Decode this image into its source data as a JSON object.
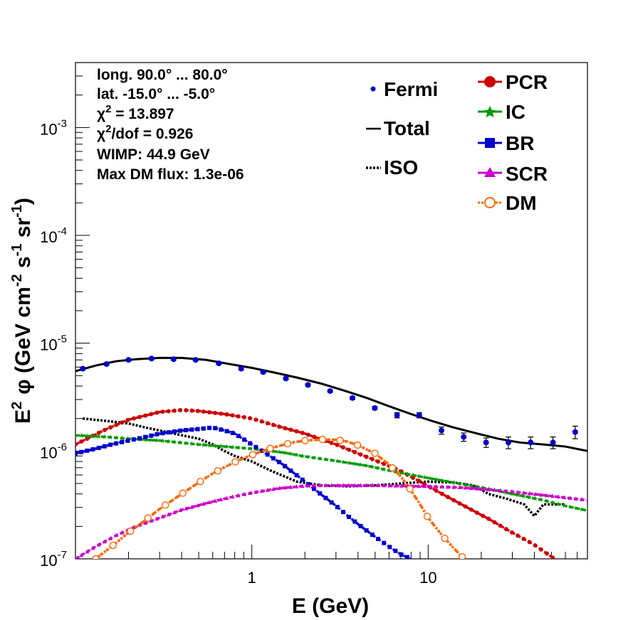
{
  "chart_data": {
    "type": "line",
    "x_scale": "log",
    "y_scale": "log",
    "xlabel": "E (GeV)",
    "ylabel_parts": {
      "a": "E",
      "a_sup": "2",
      "b": "φ (GeV cm",
      "b_sup": "-2",
      "c": " s",
      "c_sup": "-1",
      "d": " sr",
      "d_sup": "-1",
      "e": ")"
    },
    "xlim": [
      0.1,
      80
    ],
    "ylim": [
      1e-07,
      0.004
    ],
    "x_tick_labels": [
      {
        "value": 1,
        "text": "1"
      },
      {
        "value": 10,
        "text": "10"
      }
    ],
    "y_tick_labels": [
      {
        "value": 1e-07,
        "base": "10",
        "exp": "-7"
      },
      {
        "value": 1e-06,
        "base": "10",
        "exp": "-6"
      },
      {
        "value": 1e-05,
        "base": "10",
        "exp": "-5"
      },
      {
        "value": 0.0001,
        "base": "10",
        "exp": "-4"
      },
      {
        "value": 0.001,
        "base": "10",
        "exp": "-3"
      }
    ],
    "info_lines": [
      {
        "text": "long. 90.0° ... 80.0°"
      },
      {
        "text": "lat. -15.0° ... -5.0°"
      },
      {
        "prefix": "χ",
        "sup": "2",
        "text": " = 13.897"
      },
      {
        "prefix": "χ",
        "sup": "2",
        "text": "/dof = 0.926"
      },
      {
        "text": "WIMP: 44.9 GeV"
      },
      {
        "text": "Max DM flux: 1.3e-06"
      }
    ],
    "legend_left": [
      {
        "label": "Fermi",
        "style": "point",
        "color": "#0000cc"
      },
      {
        "label": "Total",
        "style": "line",
        "color": "#000000"
      },
      {
        "label": "ISO",
        "style": "dotted",
        "color": "#000000"
      }
    ],
    "legend_right": [
      {
        "label": "PCR",
        "marker": "circle",
        "color": "#cc0000"
      },
      {
        "label": "IC",
        "marker": "star",
        "color": "#009900"
      },
      {
        "label": "BR",
        "marker": "square",
        "color": "#0000cc"
      },
      {
        "label": "SCR",
        "marker": "triangle",
        "color": "#cc00cc"
      },
      {
        "label": "DM",
        "marker": "open-circle",
        "color": "#ff6600"
      }
    ],
    "fermi": {
      "x": [
        0.11,
        0.15,
        0.2,
        0.27,
        0.36,
        0.48,
        0.65,
        0.87,
        1.16,
        1.56,
        2.08,
        2.78,
        3.72,
        4.98,
        6.66,
        8.9,
        11.9,
        15.9,
        21.3,
        28.5,
        38.1,
        51.0,
        68.2
      ],
      "y": [
        5.8e-06,
        6.4e-06,
        7e-06,
        7.2e-06,
        7.1e-06,
        7e-06,
        6.5e-06,
        5.8e-06,
        5.4e-06,
        4.7e-06,
        4.1e-06,
        3.6e-06,
        3.1e-06,
        2.5e-06,
        2.15e-06,
        2.15e-06,
        1.55e-06,
        1.35e-06,
        1.2e-06,
        1.2e-06,
        1.2e-06,
        1.2e-06,
        1.5e-06
      ],
      "err": [
        1.5e-07,
        1.5e-07,
        1.5e-07,
        1.5e-07,
        1.5e-07,
        1.5e-07,
        1.5e-07,
        1.5e-07,
        1.2e-07,
        1e-07,
        1e-07,
        8e-08,
        8e-08,
        8e-08,
        1.2e-07,
        1.2e-07,
        1.2e-07,
        1.2e-07,
        1.2e-07,
        1.5e-07,
        1.5e-07,
        1.5e-07,
        2e-07
      ],
      "color": "#0000cc"
    },
    "series": [
      {
        "name": "Total",
        "style": "solid",
        "color": "#000000",
        "marker": "none",
        "x": [
          0.1,
          0.13,
          0.17,
          0.22,
          0.3,
          0.4,
          0.55,
          0.75,
          1.0,
          1.3,
          1.8,
          2.5,
          3.4,
          4.5,
          6.0,
          8.0,
          10.5,
          14.0,
          19.0,
          25.0,
          33.0,
          45.0,
          60.0,
          80.0
        ],
        "y": [
          5.5e-06,
          6.2e-06,
          6.8e-06,
          7.1e-06,
          7.3e-06,
          7.3e-06,
          7e-06,
          6.4e-06,
          5.9e-06,
          5.4e-06,
          4.8e-06,
          4.2e-06,
          3.6e-06,
          3.1e-06,
          2.6e-06,
          2.2e-06,
          1.9e-06,
          1.65e-06,
          1.45e-06,
          1.3e-06,
          1.2e-06,
          1.15e-06,
          1.1e-06,
          1e-06
        ]
      },
      {
        "name": "ISO",
        "style": "dotted",
        "color": "#000000",
        "marker": "none",
        "x": [
          0.11,
          0.15,
          0.2,
          0.25,
          0.3,
          0.4,
          0.5,
          0.6,
          0.7,
          0.8,
          1.0,
          1.3,
          1.8,
          2.5,
          3.5,
          5.0,
          7.0,
          10.0,
          14.0,
          18.0,
          22.0,
          28.0,
          35.0,
          40.0,
          45.0,
          50.0,
          60.0
        ],
        "y": [
          2e-06,
          1.9e-06,
          1.8e-06,
          1.65e-06,
          1.55e-06,
          1.4e-06,
          1.3e-06,
          1.15e-06,
          1e-06,
          9e-07,
          8e-07,
          6.5e-07,
          5.2e-07,
          4.8e-07,
          4.7e-07,
          4.8e-07,
          5e-07,
          5.2e-07,
          5.1e-07,
          4.8e-07,
          4e-07,
          3.6e-07,
          3.2e-07,
          2.5e-07,
          3.2e-07,
          3.2e-07,
          3.2e-07
        ]
      },
      {
        "name": "PCR",
        "style": "dashed",
        "color": "#cc0000",
        "marker": "circle",
        "x": [
          0.1,
          0.15,
          0.2,
          0.3,
          0.4,
          0.5,
          0.7,
          1.0,
          1.4,
          2.0,
          3.0,
          4.0,
          5.5,
          7.0,
          9.0,
          12.0,
          16.0,
          22.0,
          30.0,
          40.0,
          52.0
        ],
        "y": [
          1.15e-06,
          1.6e-06,
          1.95e-06,
          2.3e-06,
          2.4e-06,
          2.35e-06,
          2.2e-06,
          2e-06,
          1.7e-06,
          1.45e-06,
          1.15e-06,
          9.5e-07,
          7.7e-07,
          6.5e-07,
          5.2e-07,
          4e-07,
          3.1e-07,
          2.35e-07,
          1.75e-07,
          1.35e-07,
          1e-07
        ]
      },
      {
        "name": "IC",
        "style": "dashed",
        "color": "#009900",
        "marker": "star",
        "x": [
          0.1,
          0.15,
          0.2,
          0.3,
          0.5,
          0.7,
          1.0,
          1.5,
          2.0,
          3.0,
          4.5,
          6.0,
          9.0,
          13.0,
          20.0,
          30.0,
          45.0,
          60.0,
          80.0
        ],
        "y": [
          1.4e-06,
          1.35e-06,
          1.3e-06,
          1.25e-06,
          1.15e-06,
          1.1e-06,
          1.05e-06,
          9.7e-07,
          8.9e-07,
          8.1e-07,
          7.3e-07,
          6.6e-07,
          5.8e-07,
          5.2e-07,
          4.6e-07,
          4e-07,
          3.5e-07,
          3.1e-07,
          2.8e-07
        ]
      },
      {
        "name": "BR",
        "style": "dashed",
        "color": "#0000cc",
        "marker": "square",
        "x": [
          0.1,
          0.13,
          0.16,
          0.2,
          0.25,
          0.3,
          0.4,
          0.5,
          0.6,
          0.7,
          0.8,
          1.0,
          1.2,
          1.5,
          2.0,
          2.5,
          3.0,
          3.5,
          4.0,
          5.0,
          6.0,
          7.0,
          8.0
        ],
        "y": [
          9.5e-07,
          1.05e-06,
          1.15e-06,
          1.25e-06,
          1.35e-06,
          1.45e-06,
          1.55e-06,
          1.6e-06,
          1.65e-06,
          1.55e-06,
          1.45e-06,
          1.15e-06,
          9.5e-07,
          7.5e-07,
          5.2e-07,
          3.9e-07,
          3.1e-07,
          2.5e-07,
          2.1e-07,
          1.6e-07,
          1.3e-07,
          1.1e-07,
          1e-07
        ]
      },
      {
        "name": "SCR",
        "style": "dashed",
        "color": "#cc00cc",
        "marker": "triangle",
        "x": [
          0.1,
          0.13,
          0.17,
          0.22,
          0.3,
          0.4,
          0.6,
          0.8,
          1.0,
          1.4,
          2.0,
          2.5,
          3.5,
          5.0,
          7.0,
          10.0,
          15.0,
          20.0,
          30.0,
          45.0,
          60.0,
          80.0
        ],
        "y": [
          1e-07,
          1.3e-07,
          1.65e-07,
          2e-07,
          2.4e-07,
          2.85e-07,
          3.4e-07,
          3.8e-07,
          4.1e-07,
          4.5e-07,
          4.75e-07,
          4.8e-07,
          4.8e-07,
          4.8e-07,
          4.75e-07,
          4.7e-07,
          4.6e-07,
          4.45e-07,
          4.2e-07,
          3.9e-07,
          3.7e-07,
          3.5e-07
        ]
      },
      {
        "name": "DM",
        "style": "dotted",
        "color": "#ff6600",
        "marker": "open-circle",
        "x": [
          0.13,
          0.16,
          0.2,
          0.25,
          0.3,
          0.4,
          0.5,
          0.6,
          0.8,
          1.0,
          1.3,
          1.7,
          2.0,
          2.5,
          3.0,
          3.5,
          4.0,
          5.0,
          6.0,
          7.0,
          8.0,
          9.0,
          10.0,
          12.0,
          14.0,
          16.0
        ],
        "y": [
          1e-07,
          1.3e-07,
          1.75e-07,
          2.3e-07,
          2.9e-07,
          4e-07,
          5.1e-07,
          6.2e-07,
          7.9e-07,
          9.2e-07,
          1.07e-06,
          1.2e-06,
          1.25e-06,
          1.28e-06,
          1.27e-06,
          1.22e-06,
          1.13e-06,
          9.5e-07,
          7.5e-07,
          5.8e-07,
          4.3e-07,
          3.2e-07,
          2.4e-07,
          1.65e-07,
          1.25e-07,
          1e-07
        ]
      }
    ]
  }
}
